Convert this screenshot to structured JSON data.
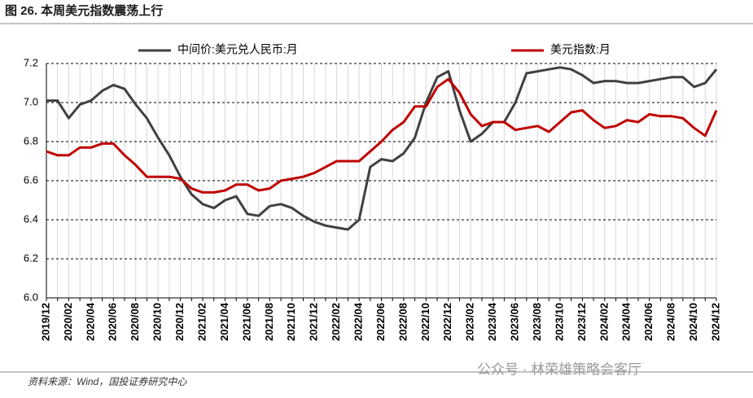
{
  "chart_data": {
    "type": "line",
    "title": "图 26. 本周美元指数震荡上行",
    "source": "资料来源：Wind，国投证券研究中心",
    "watermark": "公众号 · 林荣雄策略会客厅",
    "categories": [
      "2019/12",
      null,
      "2020/02",
      null,
      "2020/04",
      null,
      "2020/06",
      null,
      "2020/08",
      null,
      "2020/10",
      null,
      "2020/12",
      null,
      "2021/02",
      null,
      "2021/04",
      null,
      "2021/06",
      null,
      "2021/08",
      null,
      "2021/10",
      null,
      "2021/12",
      null,
      "2022/02",
      null,
      "2022/04",
      null,
      "2022/06",
      null,
      "2022/08",
      null,
      "2022/10",
      null,
      "2022/12",
      null,
      "2023/02",
      null,
      "2023/04",
      null,
      "2023/06",
      null,
      "2023/08",
      null,
      "2023/10",
      null,
      "2023/12",
      null,
      "2024/02",
      null,
      "2024/04",
      null,
      "2024/06",
      null,
      "2024/08",
      null,
      "2024/10",
      null,
      "2024/12"
    ],
    "series": [
      {
        "name": "中间价:美元兑人民币:月",
        "color": "#404040",
        "values": [
          7.01,
          7.01,
          6.92,
          6.99,
          7.01,
          7.06,
          7.09,
          7.07,
          6.99,
          6.92,
          6.82,
          6.73,
          6.62,
          6.53,
          6.48,
          6.46,
          6.5,
          6.52,
          6.43,
          6.42,
          6.47,
          6.48,
          6.46,
          6.42,
          6.39,
          6.37,
          6.36,
          6.35,
          6.4,
          6.67,
          6.71,
          6.7,
          6.74,
          6.82,
          7.0,
          7.13,
          7.16,
          6.96,
          6.8,
          6.84,
          6.9,
          6.9,
          7.0,
          7.15,
          7.16,
          7.17,
          7.18,
          7.17,
          7.14,
          7.1,
          7.11,
          7.11,
          7.1,
          7.1,
          7.11,
          7.12,
          7.13,
          7.13,
          7.08,
          7.1,
          7.17
        ]
      },
      {
        "name": "美元指数:月",
        "color": "#c00000",
        "values": [
          6.75,
          6.73,
          6.73,
          6.77,
          6.77,
          6.79,
          6.79,
          6.73,
          6.68,
          6.62,
          6.62,
          6.62,
          6.61,
          6.56,
          6.54,
          6.54,
          6.55,
          6.58,
          6.58,
          6.55,
          6.56,
          6.6,
          6.61,
          6.62,
          6.64,
          6.67,
          6.7,
          6.7,
          6.7,
          6.75,
          6.8,
          6.86,
          6.9,
          6.98,
          6.98,
          7.08,
          7.12,
          7.05,
          6.94,
          6.88,
          6.9,
          6.9,
          6.86,
          6.87,
          6.88,
          6.85,
          6.9,
          6.95,
          6.96,
          6.91,
          6.87,
          6.88,
          6.91,
          6.9,
          6.94,
          6.93,
          6.93,
          6.92,
          6.87,
          6.83,
          6.96
        ]
      }
    ],
    "ylim": [
      6.0,
      7.2
    ],
    "yticks": [
      {
        "value": 6.0,
        "label": "6.0"
      },
      6.2,
      6.4,
      6.6,
      6.8,
      {
        "value": 7.0,
        "label": "7.0"
      },
      7.2
    ],
    "grid": true,
    "legend": "top"
  }
}
